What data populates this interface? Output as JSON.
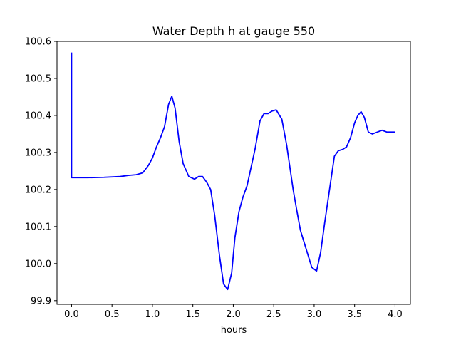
{
  "chart_data": {
    "type": "line",
    "title": "Water Depth h at gauge 550",
    "xlabel": "hours",
    "ylabel": "",
    "xlim": [
      -0.18,
      4.19
    ],
    "ylim": [
      99.89,
      100.6
    ],
    "xticks": [
      0.0,
      0.5,
      1.0,
      1.5,
      2.0,
      2.5,
      3.0,
      3.5,
      4.0
    ],
    "xtick_labels": [
      "0.0",
      "0.5",
      "1.0",
      "1.5",
      "2.0",
      "2.5",
      "3.0",
      "3.5",
      "4.0"
    ],
    "yticks": [
      99.9,
      100.0,
      100.1,
      100.2,
      100.3,
      100.4,
      100.5,
      100.6
    ],
    "ytick_labels": [
      "99.9",
      "100.0",
      "100.1",
      "100.2",
      "100.3",
      "100.4",
      "100.5",
      "100.6"
    ],
    "grid": false,
    "series": [
      {
        "color": "#0000ff",
        "x": [
          0.0,
          0.0,
          0.0,
          0.2,
          0.4,
          0.6,
          0.7,
          0.8,
          0.88,
          0.95,
          1.0,
          1.05,
          1.1,
          1.15,
          1.2,
          1.24,
          1.28,
          1.33,
          1.38,
          1.45,
          1.52,
          1.57,
          1.62,
          1.67,
          1.72,
          1.77,
          1.83,
          1.88,
          1.93,
          1.98,
          2.02,
          2.07,
          2.12,
          2.17,
          2.22,
          2.27,
          2.33,
          2.38,
          2.43,
          2.48,
          2.53,
          2.6,
          2.66,
          2.7,
          2.74,
          2.78,
          2.83,
          2.9,
          2.97,
          3.03,
          3.08,
          3.13,
          3.17,
          3.21,
          3.25,
          3.3,
          3.35,
          3.4,
          3.45,
          3.5,
          3.54,
          3.58,
          3.62,
          3.67,
          3.72,
          3.78,
          3.84,
          3.9,
          3.94,
          3.97,
          4.0
        ],
        "y": [
          100.57,
          100.232,
          100.232,
          100.232,
          100.233,
          100.235,
          100.238,
          100.24,
          100.245,
          100.265,
          100.285,
          100.315,
          100.34,
          100.37,
          100.43,
          100.452,
          100.42,
          100.33,
          100.27,
          100.235,
          100.228,
          100.235,
          100.235,
          100.22,
          100.2,
          100.13,
          100.02,
          99.945,
          99.93,
          99.975,
          100.07,
          100.14,
          100.18,
          100.21,
          100.26,
          100.31,
          100.385,
          100.405,
          100.405,
          100.412,
          100.415,
          100.39,
          100.32,
          100.26,
          100.2,
          100.15,
          100.09,
          100.04,
          99.99,
          99.98,
          100.03,
          100.11,
          100.17,
          100.23,
          100.29,
          100.305,
          100.308,
          100.315,
          100.34,
          100.38,
          100.4,
          100.41,
          100.395,
          100.355,
          100.35,
          100.355,
          100.36,
          100.355,
          100.355,
          100.355,
          100.355
        ]
      }
    ]
  }
}
